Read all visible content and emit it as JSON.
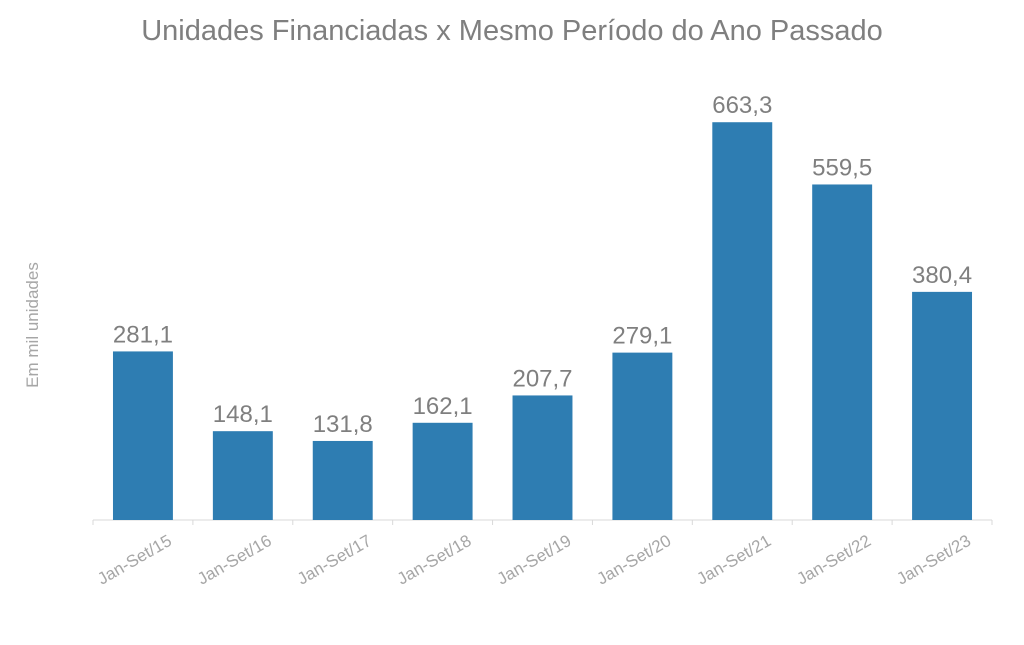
{
  "chart_data": {
    "type": "bar",
    "title": "Unidades Financiadas x Mesmo Período do Ano Passado",
    "ylabel": "Em mil unidades",
    "xlabel": "",
    "categories": [
      "Jan-Set/15",
      "Jan-Set/16",
      "Jan-Set/17",
      "Jan-Set/18",
      "Jan-Set/19",
      "Jan-Set/20",
      "Jan-Set/21",
      "Jan-Set/22",
      "Jan-Set/23"
    ],
    "values": [
      281.1,
      148.1,
      131.8,
      162.1,
      207.7,
      279.1,
      663.3,
      559.5,
      380.4
    ],
    "value_labels": [
      "281,1",
      "148,1",
      "131,8",
      "162,1",
      "207,7",
      "279,1",
      "663,3",
      "559,5",
      "380,4"
    ],
    "ylim": [
      0,
      700
    ],
    "grid": false,
    "legend": "none",
    "colors": {
      "bar": "#2e7db2",
      "title": "#7f7f7f",
      "label": "#a6a6a6",
      "axis": "#d9d9d9"
    }
  }
}
